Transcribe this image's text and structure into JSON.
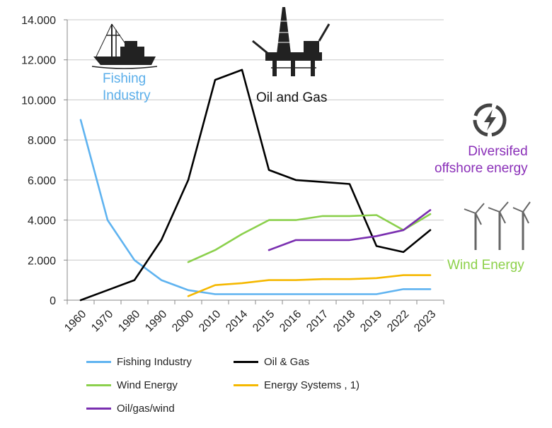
{
  "chart_data": {
    "type": "line",
    "title": "",
    "xlabel": "",
    "ylabel": "",
    "categories": [
      "1960",
      "1970",
      "1980",
      "1990",
      "2000",
      "2010",
      "2014",
      "2015",
      "2016",
      "2017",
      "2018",
      "2019",
      "2022",
      "2023"
    ],
    "ylim": [
      0,
      14000
    ],
    "yticks": [
      0,
      2000,
      4000,
      6000,
      8000,
      10000,
      12000,
      14000
    ],
    "ytick_labels": [
      "0",
      "2.000",
      "4.000",
      "6.000",
      "8.000",
      "10.000",
      "12.000",
      "14.000"
    ],
    "grid": true,
    "legend_position": "bottom",
    "series": [
      {
        "name": "Fishing Industry",
        "color": "#5fb3f0",
        "values": [
          9000,
          4000,
          2000,
          1000,
          500,
          300,
          300,
          300,
          300,
          300,
          300,
          300,
          550,
          550
        ]
      },
      {
        "name": "Oil & Gas",
        "color": "#000000",
        "values": [
          0,
          500,
          1000,
          3000,
          6000,
          11000,
          11500,
          6500,
          6000,
          5900,
          5800,
          2700,
          2400,
          3500
        ]
      },
      {
        "name": "Wind Energy",
        "color": "#8bd04c",
        "values": [
          null,
          null,
          null,
          null,
          1900,
          2500,
          3300,
          4000,
          4000,
          4200,
          4200,
          4250,
          3500,
          4300
        ]
      },
      {
        "name": "Energy Systems , 1)",
        "color": "#f5b800",
        "values": [
          null,
          null,
          null,
          null,
          200,
          750,
          850,
          1000,
          1000,
          1050,
          1050,
          1100,
          1250,
          1250
        ]
      },
      {
        "name": "Oil/gas/wind",
        "color": "#7a2fb0",
        "values": [
          null,
          null,
          null,
          null,
          null,
          null,
          null,
          2500,
          3000,
          3000,
          3000,
          3200,
          3500,
          4500
        ]
      }
    ],
    "annotations": [
      {
        "text": "Fishing Industry",
        "color": "#5aaeea"
      },
      {
        "text": "Oil and Gas",
        "color": "#111111"
      },
      {
        "text": "Diversifed offshore energy",
        "color": "#8a2fb8"
      },
      {
        "text": "Wind Energy",
        "color": "#8dd14a"
      }
    ]
  },
  "annotations": {
    "fishing": {
      "line1": "Fishing",
      "line2": "Industry"
    },
    "oil": "Oil and Gas",
    "diversified": {
      "line1": "Diversifed",
      "line2": "offshore energy"
    },
    "wind": "Wind Energy"
  },
  "icons": {
    "fishing_vessel": "fishing-vessel-icon",
    "oil_platform": "oil-platform-icon",
    "energy": "lightning-icon",
    "wind_turbines": "wind-turbine-icon"
  }
}
